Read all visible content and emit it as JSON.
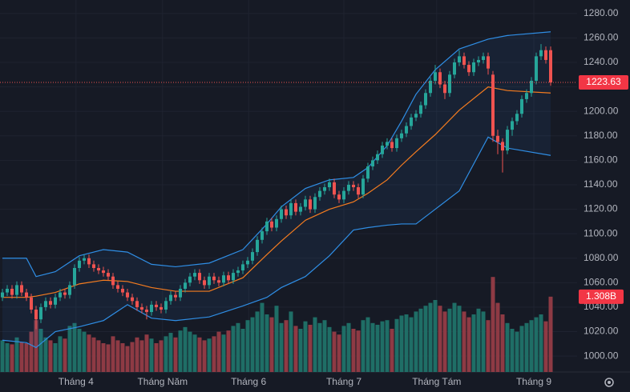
{
  "chart_data": {
    "type": "candlestick",
    "open": [
      1048,
      1052,
      1055,
      1050,
      1058,
      1052,
      1048,
      1038,
      1030,
      1040,
      1045,
      1042,
      1048,
      1052,
      1050,
      1058,
      1072,
      1078,
      1080,
      1075,
      1072,
      1070,
      1068,
      1065,
      1058,
      1055,
      1052,
      1048,
      1045,
      1040,
      1038,
      1036,
      1042,
      1040,
      1038,
      1045,
      1050,
      1048,
      1055,
      1060,
      1065,
      1068,
      1062,
      1058,
      1065,
      1062,
      1060,
      1066,
      1062,
      1068,
      1070,
      1075,
      1078,
      1085,
      1095,
      1102,
      1110,
      1105,
      1112,
      1120,
      1115,
      1125,
      1118,
      1122,
      1128,
      1120,
      1130,
      1135,
      1138,
      1142,
      1132,
      1128,
      1135,
      1140,
      1138,
      1132,
      1145,
      1155,
      1160,
      1165,
      1172,
      1175,
      1170,
      1178,
      1182,
      1188,
      1195,
      1198,
      1205,
      1215,
      1225,
      1232,
      1222,
      1215,
      1230,
      1240,
      1245,
      1238,
      1232,
      1240,
      1242,
      1245,
      1230,
      1180,
      1175,
      1168,
      1185,
      1192,
      1198,
      1210,
      1215,
      1225,
      1245,
      1250,
      1250
    ],
    "high": [
      1055,
      1058,
      1058,
      1061,
      1061,
      1055,
      1051,
      1041,
      1043,
      1048,
      1048,
      1051,
      1055,
      1055,
      1061,
      1075,
      1081,
      1083,
      1083,
      1078,
      1075,
      1073,
      1071,
      1068,
      1061,
      1058,
      1055,
      1051,
      1048,
      1043,
      1041,
      1045,
      1045,
      1043,
      1048,
      1053,
      1053,
      1058,
      1063,
      1068,
      1071,
      1071,
      1065,
      1068,
      1068,
      1065,
      1069,
      1069,
      1071,
      1073,
      1078,
      1081,
      1088,
      1098,
      1105,
      1113,
      1113,
      1115,
      1123,
      1123,
      1128,
      1128,
      1125,
      1131,
      1131,
      1133,
      1138,
      1141,
      1145,
      1145,
      1135,
      1138,
      1143,
      1143,
      1141,
      1148,
      1158,
      1163,
      1168,
      1175,
      1178,
      1178,
      1181,
      1185,
      1191,
      1198,
      1201,
      1208,
      1218,
      1228,
      1238,
      1235,
      1225,
      1233,
      1243,
      1250,
      1248,
      1241,
      1243,
      1245,
      1248,
      1248,
      1233,
      1185,
      1178,
      1188,
      1195,
      1201,
      1213,
      1218,
      1228,
      1248,
      1255,
      1253,
      1253
    ],
    "low": [
      1045,
      1049,
      1047,
      1047,
      1049,
      1045,
      1035,
      1022,
      1027,
      1037,
      1039,
      1039,
      1045,
      1047,
      1047,
      1055,
      1069,
      1075,
      1072,
      1069,
      1067,
      1065,
      1062,
      1055,
      1052,
      1049,
      1045,
      1042,
      1037,
      1035,
      1030,
      1033,
      1037,
      1035,
      1035,
      1042,
      1045,
      1045,
      1052,
      1057,
      1062,
      1059,
      1055,
      1055,
      1059,
      1057,
      1057,
      1059,
      1059,
      1065,
      1067,
      1072,
      1075,
      1082,
      1092,
      1099,
      1102,
      1102,
      1109,
      1112,
      1112,
      1115,
      1115,
      1119,
      1117,
      1117,
      1127,
      1132,
      1135,
      1129,
      1125,
      1125,
      1132,
      1135,
      1129,
      1129,
      1142,
      1152,
      1157,
      1162,
      1169,
      1167,
      1167,
      1175,
      1179,
      1185,
      1192,
      1195,
      1202,
      1212,
      1222,
      1219,
      1210,
      1212,
      1227,
      1237,
      1235,
      1229,
      1229,
      1237,
      1239,
      1230,
      1175,
      1165,
      1150,
      1165,
      1180,
      1189,
      1195,
      1207,
      1212,
      1222,
      1242,
      1239,
      1221
    ],
    "close": [
      1052,
      1055,
      1050,
      1058,
      1052,
      1048,
      1038,
      1030,
      1040,
      1045,
      1042,
      1048,
      1052,
      1050,
      1058,
      1072,
      1078,
      1080,
      1075,
      1072,
      1070,
      1068,
      1065,
      1058,
      1055,
      1052,
      1048,
      1045,
      1040,
      1038,
      1036,
      1042,
      1040,
      1038,
      1045,
      1050,
      1048,
      1055,
      1060,
      1065,
      1068,
      1062,
      1058,
      1065,
      1062,
      1060,
      1066,
      1062,
      1068,
      1070,
      1075,
      1078,
      1085,
      1095,
      1102,
      1110,
      1105,
      1112,
      1120,
      1115,
      1125,
      1118,
      1122,
      1128,
      1120,
      1130,
      1135,
      1138,
      1142,
      1132,
      1128,
      1135,
      1140,
      1138,
      1132,
      1145,
      1155,
      1160,
      1165,
      1172,
      1175,
      1170,
      1178,
      1182,
      1188,
      1195,
      1198,
      1205,
      1215,
      1225,
      1232,
      1222,
      1215,
      1230,
      1240,
      1245,
      1238,
      1232,
      1240,
      1242,
      1245,
      1235,
      1180,
      1175,
      1168,
      1185,
      1192,
      1198,
      1210,
      1215,
      1225,
      1245,
      1250,
      1242,
      1223.63
    ],
    "volume": [
      0.55,
      0.5,
      0.48,
      0.6,
      0.52,
      0.5,
      0.7,
      0.9,
      0.75,
      0.6,
      0.55,
      0.5,
      0.62,
      0.58,
      0.8,
      0.85,
      0.75,
      0.7,
      0.65,
      0.6,
      0.55,
      0.5,
      0.48,
      0.62,
      0.55,
      0.5,
      0.45,
      0.52,
      0.6,
      0.55,
      0.65,
      0.58,
      0.5,
      0.55,
      0.62,
      0.68,
      0.6,
      0.72,
      0.78,
      0.7,
      0.65,
      0.6,
      0.55,
      0.58,
      0.62,
      0.7,
      0.65,
      0.72,
      0.8,
      0.85,
      0.75,
      0.9,
      0.95,
      1.05,
      1.2,
      1.0,
      0.95,
      1.15,
      0.85,
      0.9,
      1.05,
      0.8,
      0.75,
      0.88,
      0.82,
      0.95,
      0.85,
      0.9,
      0.78,
      0.7,
      0.65,
      0.8,
      0.85,
      0.75,
      0.72,
      0.9,
      0.95,
      0.85,
      0.82,
      0.88,
      0.9,
      0.75,
      0.92,
      0.98,
      1.0,
      0.95,
      1.05,
      1.1,
      1.15,
      1.2,
      1.25,
      1.15,
      1.05,
      1.1,
      1.2,
      1.15,
      1.05,
      0.95,
      1.0,
      1.1,
      1.05,
      0.9,
      1.65,
      1.2,
      1.0,
      0.85,
      0.75,
      0.7,
      0.8,
      0.85,
      0.9,
      0.95,
      1.0,
      0.88,
      1.308
    ],
    "volume_label": "1.308B",
    "bands": [
      {
        "color": "#2f8ee5",
        "x": [
          0,
          5,
          7,
          11,
          16,
          21,
          26,
          31,
          36,
          43,
          50,
          55,
          58,
          63,
          68,
          73,
          76,
          80,
          83,
          86,
          90,
          95,
          101,
          105,
          114
        ],
        "values": [
          1080,
          1080,
          1065,
          1069,
          1082,
          1087,
          1085,
          1075,
          1073,
          1076,
          1087,
          1108,
          1122,
          1137,
          1144,
          1146,
          1154,
          1172,
          1192,
          1214,
          1234,
          1251,
          1259,
          1262,
          1265
        ]
      },
      {
        "color": "#f57c1f",
        "x": [
          0,
          5,
          7,
          11,
          16,
          21,
          26,
          31,
          36,
          43,
          50,
          55,
          58,
          63,
          68,
          73,
          76,
          80,
          83,
          86,
          90,
          95,
          101,
          105,
          114
        ],
        "values": [
          1048,
          1048,
          1049,
          1052,
          1059,
          1062,
          1061,
          1056,
          1053,
          1053,
          1064,
          1083,
          1094,
          1111,
          1120,
          1126,
          1133,
          1144,
          1156,
          1167,
          1181,
          1201,
          1220,
          1217,
          1215
        ]
      },
      {
        "color": "#2f8ee5",
        "x": [
          0,
          5,
          7,
          11,
          16,
          21,
          26,
          31,
          36,
          43,
          50,
          55,
          58,
          63,
          68,
          73,
          76,
          80,
          83,
          86,
          90,
          95,
          101,
          105,
          114
        ],
        "values": [
          1013,
          1011,
          1007,
          1020,
          1024,
          1029,
          1042,
          1031,
          1029,
          1032,
          1041,
          1048,
          1056,
          1065,
          1082,
          1103,
          1105,
          1107,
          1108,
          1108,
          1120,
          1135,
          1179,
          1170,
          1164
        ]
      }
    ],
    "up_color": "#26a69a",
    "down_color": "#ef5350",
    "volume_up_color": "#1f6e66",
    "volume_down_color": "#8e3a44",
    "ylim": [
      987,
      1291
    ],
    "y2lim": [
      0,
      2.0
    ],
    "yticks": [
      {
        "value": 1000,
        "label": "1000.00"
      },
      {
        "value": 1020,
        "label": "1020.00"
      },
      {
        "value": 1040,
        "label": "1040.00"
      },
      {
        "value": 1060,
        "label": "1060.00"
      },
      {
        "value": 1080,
        "label": "1080.00"
      },
      {
        "value": 1100,
        "label": "1100.00"
      },
      {
        "value": 1120,
        "label": "1120.00"
      },
      {
        "value": 1140,
        "label": "1140.00"
      },
      {
        "value": 1160,
        "label": "1160.00"
      },
      {
        "value": 1180,
        "label": "1180.00"
      },
      {
        "value": 1200,
        "label": "1200.00"
      },
      {
        "value": 1220,
        "label": "1220.00"
      },
      {
        "value": 1240,
        "label": "1240.00"
      },
      {
        "value": 1260,
        "label": "1260.00"
      },
      {
        "value": 1280,
        "label": "1280.00"
      }
    ],
    "xticks": [
      {
        "value": 15.3,
        "label": "Tháng 4"
      },
      {
        "value": 33.3,
        "label": "Tháng Năm"
      },
      {
        "value": 51.2,
        "label": "Tháng 6"
      },
      {
        "value": 71,
        "label": "Tháng 7"
      },
      {
        "value": 90.3,
        "label": "Tháng Tám"
      },
      {
        "value": 110.5,
        "label": "Tháng 9"
      }
    ],
    "grid": true
  }
}
